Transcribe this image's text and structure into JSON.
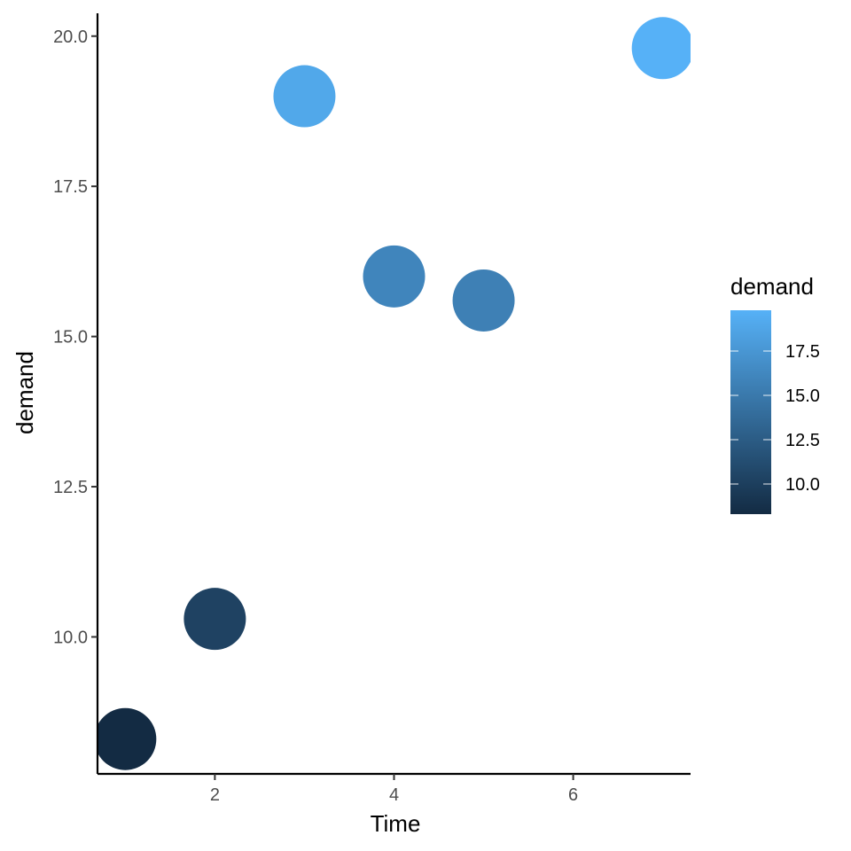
{
  "chart_data": {
    "type": "scatter",
    "title": "",
    "xlabel": "Time",
    "ylabel": "demand",
    "x": [
      1,
      2,
      3,
      4,
      5,
      7
    ],
    "y": [
      8.3,
      10.3,
      19.0,
      16.0,
      15.6,
      19.8
    ],
    "color_by": "demand",
    "xlim": [
      0.69,
      7.31
    ],
    "ylim": [
      7.72,
      20.38
    ],
    "x_ticks": [
      2,
      4,
      6
    ],
    "x_tick_labels": [
      "2",
      "4",
      "6"
    ],
    "y_ticks": [
      10,
      12.5,
      15,
      17.5,
      20
    ],
    "y_tick_labels": [
      "10.0",
      "12.5",
      "15.0",
      "17.5",
      "20.0"
    ],
    "grid": false,
    "legend": {
      "title": "demand",
      "position": "right",
      "type": "colorbar",
      "range": [
        8.3,
        19.8
      ],
      "ticks": [
        10,
        12.5,
        15,
        17.5
      ],
      "tick_labels": [
        "10.0",
        "12.5",
        "15.0",
        "17.5"
      ]
    },
    "colors": {
      "low": "#132B43",
      "high": "#56B1F7"
    }
  }
}
